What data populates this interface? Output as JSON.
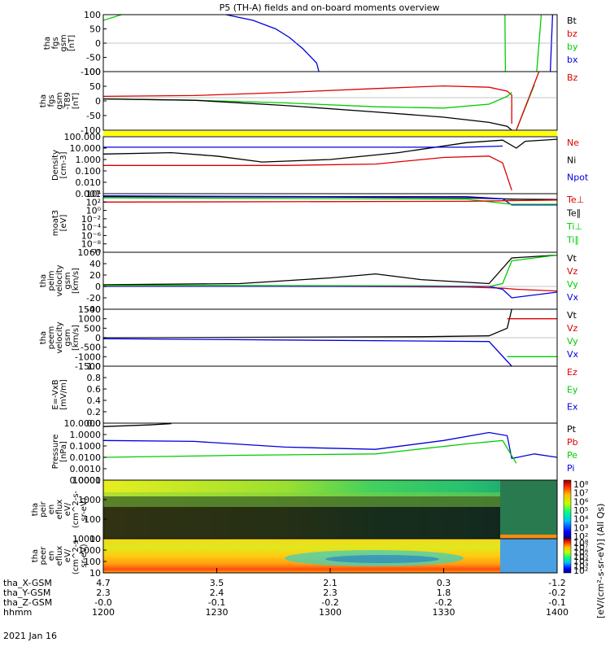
{
  "title": "P5 (TH-A) fields and on-board moments overview",
  "date_label": "2021 Jan 16",
  "colors": {
    "black": "#000000",
    "red": "#dd0000",
    "green": "#00cc00",
    "blue": "#0000dd",
    "yellow": "#ffff00"
  },
  "chart_data": [
    {
      "type": "line",
      "id": "fgs",
      "ylabel": [
        "tha",
        "fgs",
        "gsm",
        "[nT]"
      ],
      "ylim": [
        -100,
        100
      ],
      "yticks": [
        "100",
        "50",
        "0",
        "-50",
        "-100"
      ],
      "legend": [
        {
          "label": "Bt",
          "color": "black"
        },
        {
          "label": "bz",
          "color": "red"
        },
        {
          "label": "by",
          "color": "green"
        },
        {
          "label": "bx",
          "color": "blue"
        }
      ],
      "series": [
        {
          "color": "green",
          "points": [
            [
              0,
              80
            ],
            [
              0.04,
              100
            ]
          ]
        },
        {
          "color": "blue",
          "points": [
            [
              0.27,
              100
            ],
            [
              0.33,
              80
            ],
            [
              0.38,
              50
            ],
            [
              0.41,
              20
            ],
            [
              0.44,
              -20
            ],
            [
              0.47,
              -70
            ],
            [
              0.475,
              -100
            ]
          ]
        },
        {
          "color": "green",
          "points": [
            [
              0.885,
              100
            ],
            [
              0.886,
              -100
            ]
          ]
        },
        {
          "color": "green",
          "points": [
            [
              0.955,
              -100
            ],
            [
              0.965,
              100
            ]
          ]
        },
        {
          "color": "blue",
          "points": [
            [
              0.985,
              -100
            ],
            [
              0.99,
              100
            ]
          ]
        }
      ]
    },
    {
      "type": "line",
      "id": "fgs-t89",
      "ylabel": [
        "tha",
        "fgs",
        "gsm",
        "-T89",
        "[nT]"
      ],
      "ylim": [
        -125,
        100
      ],
      "yticks": [
        "100",
        "50",
        "0",
        "-50",
        "-100"
      ],
      "legend": [
        {
          "label": "Bz",
          "color": "red"
        }
      ],
      "series": [
        {
          "color": "red",
          "points": [
            [
              0,
              5
            ],
            [
              0.2,
              8
            ],
            [
              0.4,
              20
            ],
            [
              0.6,
              35
            ],
            [
              0.75,
              45
            ],
            [
              0.85,
              40
            ],
            [
              0.89,
              25
            ],
            [
              0.9,
              10
            ],
            [
              0.9,
              -100
            ]
          ]
        },
        {
          "color": "green",
          "points": [
            [
              0,
              -5
            ],
            [
              0.2,
              -10
            ],
            [
              0.4,
              -20
            ],
            [
              0.6,
              -35
            ],
            [
              0.75,
              -40
            ],
            [
              0.85,
              -25
            ],
            [
              0.89,
              5
            ],
            [
              0.9,
              20
            ]
          ]
        },
        {
          "color": "black",
          "points": [
            [
              0,
              -5
            ],
            [
              0.2,
              -10
            ],
            [
              0.4,
              -30
            ],
            [
              0.6,
              -55
            ],
            [
              0.75,
              -75
            ],
            [
              0.85,
              -95
            ],
            [
              0.89,
              -110
            ],
            [
              0.9,
              -125
            ]
          ]
        },
        {
          "color": "green",
          "points": [
            [
              0.91,
              -125
            ],
            [
              0.95,
              50
            ]
          ]
        },
        {
          "color": "red",
          "points": [
            [
              0.91,
              -125
            ],
            [
              0.96,
              100
            ]
          ]
        }
      ]
    },
    {
      "type": "line",
      "id": "density",
      "ylabel": [
        "Density",
        "[cm-3]"
      ],
      "ylim": [
        0.001,
        100
      ],
      "log": true,
      "yticks": [
        "100.000",
        "10.000",
        "1.000",
        "0.100",
        "0.010",
        "0.001"
      ],
      "legend": [
        {
          "label": "Ne",
          "color": "red"
        },
        {
          "label": "Ni",
          "color": "black"
        },
        {
          "label": "Npot",
          "color": "blue"
        }
      ],
      "series": [
        {
          "color": "black",
          "points": [
            [
              0,
              3
            ],
            [
              0.15,
              4
            ],
            [
              0.25,
              2
            ],
            [
              0.35,
              0.6
            ],
            [
              0.5,
              1
            ],
            [
              0.65,
              4
            ],
            [
              0.8,
              30
            ],
            [
              0.88,
              50
            ],
            [
              0.91,
              10
            ],
            [
              0.93,
              40
            ],
            [
              1,
              60
            ]
          ]
        },
        {
          "color": "blue",
          "points": [
            [
              0,
              12
            ],
            [
              0.8,
              12
            ],
            [
              0.88,
              15
            ]
          ]
        },
        {
          "color": "red",
          "points": [
            [
              0,
              0.3
            ],
            [
              0.4,
              0.3
            ],
            [
              0.6,
              0.4
            ],
            [
              0.75,
              1.5
            ],
            [
              0.85,
              2
            ],
            [
              0.88,
              0.5
            ],
            [
              0.9,
              0.002
            ]
          ]
        }
      ]
    },
    {
      "type": "line",
      "id": "moat3",
      "ylabel": [
        "moat3",
        "[eV]"
      ],
      "ylim": [
        1e-10,
        10000
      ],
      "log": true,
      "yticks": [
        "10⁴",
        "10²",
        "10⁰",
        "10⁻²",
        "10⁻⁴",
        "10⁻⁶",
        "10⁻⁸",
        "10⁻¹⁰"
      ],
      "legend": [
        {
          "label": "Te⊥",
          "color": "red"
        },
        {
          "label": "Te∥",
          "color": "black"
        },
        {
          "label": "Ti⊥",
          "color": "green"
        },
        {
          "label": "Ti∥",
          "color": "green"
        }
      ],
      "series": [
        {
          "color": "black",
          "points": [
            [
              0,
              2000
            ],
            [
              0.5,
              1500
            ],
            [
              0.8,
              1000
            ],
            [
              0.9,
              500
            ],
            [
              1,
              400
            ]
          ]
        },
        {
          "color": "blue",
          "points": [
            [
              0,
              3000
            ],
            [
              0.5,
              2000
            ],
            [
              0.8,
              2000
            ],
            [
              0.88,
              600
            ],
            [
              0.9,
              20
            ],
            [
              1,
              20
            ]
          ]
        },
        {
          "color": "green",
          "points": [
            [
              0,
              1000
            ],
            [
              0.8,
              500
            ],
            [
              0.9,
              30
            ],
            [
              1,
              30
            ]
          ]
        },
        {
          "color": "red",
          "points": [
            [
              0,
              100
            ],
            [
              0.8,
              150
            ],
            [
              0.88,
              200
            ],
            [
              1,
              300
            ]
          ]
        }
      ]
    },
    {
      "type": "line",
      "id": "peim",
      "ylabel": [
        "tha",
        "peim",
        "velocity",
        "gsm",
        "[km/s]"
      ],
      "ylim": [
        -40,
        60
      ],
      "yticks": [
        "60",
        "40",
        "20",
        "0",
        "-20",
        "-40"
      ],
      "legend": [
        {
          "label": "Vt",
          "color": "black"
        },
        {
          "label": "Vz",
          "color": "red"
        },
        {
          "label": "Vy",
          "color": "green"
        },
        {
          "label": "Vx",
          "color": "blue"
        }
      ],
      "series": [
        {
          "color": "black",
          "points": [
            [
              0,
              3
            ],
            [
              0.3,
              5
            ],
            [
              0.5,
              15
            ],
            [
              0.6,
              22
            ],
            [
              0.7,
              12
            ],
            [
              0.85,
              5
            ],
            [
              0.9,
              50
            ],
            [
              1,
              55
            ]
          ]
        },
        {
          "color": "red",
          "points": [
            [
              0,
              1
            ],
            [
              0.5,
              0
            ],
            [
              0.8,
              -1
            ],
            [
              0.88,
              -3
            ],
            [
              0.91,
              -5
            ],
            [
              1,
              -8
            ]
          ]
        },
        {
          "color": "green",
          "points": [
            [
              0,
              2
            ],
            [
              0.7,
              1
            ],
            [
              0.85,
              0
            ],
            [
              0.88,
              5
            ],
            [
              0.9,
              45
            ],
            [
              1,
              55
            ]
          ]
        },
        {
          "color": "blue",
          "points": [
            [
              0,
              0
            ],
            [
              0.85,
              0
            ],
            [
              0.88,
              -5
            ],
            [
              0.9,
              -20
            ],
            [
              1,
              -10
            ]
          ]
        }
      ]
    },
    {
      "type": "line",
      "id": "peem",
      "ylabel": [
        "tha",
        "peem",
        "velocity",
        "gsm",
        "[km/s]"
      ],
      "ylim": [
        -1500,
        1500
      ],
      "yticks": [
        "1500",
        "1000",
        "500",
        "0",
        "-500",
        "-1000",
        "-1500"
      ],
      "legend": [
        {
          "label": "Vt",
          "color": "black"
        },
        {
          "label": "Vz",
          "color": "red"
        },
        {
          "label": "Vy",
          "color": "green"
        },
        {
          "label": "Vx",
          "color": "blue"
        }
      ],
      "series": [
        {
          "color": "black",
          "points": [
            [
              0,
              0
            ],
            [
              0.7,
              50
            ],
            [
              0.85,
              100
            ],
            [
              0.89,
              500
            ],
            [
              0.9,
              1500
            ]
          ]
        },
        {
          "color": "blue",
          "points": [
            [
              0,
              -50
            ],
            [
              0.85,
              -200
            ],
            [
              0.9,
              -1500
            ]
          ]
        },
        {
          "color": "red",
          "points": [
            [
              0.89,
              1000
            ],
            [
              1,
              1000
            ]
          ]
        },
        {
          "color": "green",
          "points": [
            [
              0.89,
              -1000
            ],
            [
              1,
              -1000
            ]
          ]
        }
      ]
    },
    {
      "type": "line",
      "id": "efield",
      "ylabel": [
        "E=-VxB",
        "[mV/m]"
      ],
      "ylim": [
        0,
        1
      ],
      "yticks": [
        "1.0",
        "0.8",
        "0.6",
        "0.4",
        "0.2",
        "0.0"
      ],
      "legend": [
        {
          "label": "Ez",
          "color": "red"
        },
        {
          "label": "Ey",
          "color": "green"
        },
        {
          "label": "Ex",
          "color": "blue"
        }
      ],
      "series": []
    },
    {
      "type": "line",
      "id": "pressure",
      "ylabel": [
        "Pressure",
        "[nPa]"
      ],
      "ylim": [
        0.0001,
        10
      ],
      "log": true,
      "yticks": [
        "10.0000",
        "1.0000",
        "0.1000",
        "0.0100",
        "0.0010",
        "0.0001"
      ],
      "legend": [
        {
          "label": "Pt",
          "color": "black"
        },
        {
          "label": "Pb",
          "color": "red"
        },
        {
          "label": "Pe",
          "color": "green"
        },
        {
          "label": "Pi",
          "color": "blue"
        }
      ],
      "series": [
        {
          "color": "black",
          "points": [
            [
              0,
              5
            ],
            [
              0.1,
              7
            ],
            [
              0.15,
              9
            ]
          ]
        },
        {
          "color": "blue",
          "points": [
            [
              0,
              0.3
            ],
            [
              0.2,
              0.25
            ],
            [
              0.4,
              0.08
            ],
            [
              0.6,
              0.05
            ],
            [
              0.75,
              0.3
            ],
            [
              0.85,
              1.5
            ],
            [
              0.89,
              0.8
            ],
            [
              0.9,
              0.008
            ],
            [
              0.95,
              0.02
            ],
            [
              1,
              0.01
            ]
          ]
        },
        {
          "color": "green",
          "points": [
            [
              0,
              0.01
            ],
            [
              0.3,
              0.015
            ],
            [
              0.6,
              0.02
            ],
            [
              0.8,
              0.15
            ],
            [
              0.88,
              0.3
            ],
            [
              0.91,
              0.003
            ]
          ]
        }
      ]
    },
    {
      "type": "heatmap",
      "id": "peir",
      "ylabel": [
        "tha",
        "peir",
        "en",
        "eflux",
        "eV/",
        "(cm^2-s-",
        "sr-eV)"
      ],
      "ylim": [
        10,
        10000
      ],
      "log": true,
      "yticks": [
        "10000",
        "1000",
        "100",
        "10"
      ],
      "colorbar": {
        "min_exp": 2,
        "max_exp": 8,
        "ticks": [
          "10⁸",
          "10⁷",
          "10⁶",
          "10⁵",
          "10⁴",
          "10³",
          "10²"
        ]
      }
    },
    {
      "type": "heatmap",
      "id": "peer",
      "ylabel": [
        "tha",
        "peer",
        "en",
        "eflux",
        "eV/",
        "(cm^2-s-",
        "sr-eV)"
      ],
      "ylim": [
        10,
        10000
      ],
      "log": true,
      "yticks": [
        "10000",
        "1000",
        "100",
        "10"
      ],
      "colorbar": {
        "min_exp": 2,
        "max_exp": 8,
        "ticks": [
          "10⁸",
          "10⁷",
          "10⁶",
          "10⁵",
          "10⁴",
          "10³",
          "10²"
        ]
      }
    }
  ],
  "colorbar_label": "[eV/(cm²-s-sr-eV)] (All Qs)",
  "ephemeris": {
    "row_labels": [
      "tha_X-GSM",
      "tha_Y-GSM",
      "tha_Z-GSM",
      "hhmm"
    ],
    "columns": [
      {
        "values": [
          "4.7",
          "2.3",
          "-0.0",
          "1200"
        ]
      },
      {
        "values": [
          "3.5",
          "2.4",
          "-0.1",
          "1230"
        ]
      },
      {
        "values": [
          "2.1",
          "2.3",
          "-0.2",
          "1300"
        ]
      },
      {
        "values": [
          "0.3",
          "1.8",
          "-0.2",
          "1330"
        ]
      },
      {
        "values": [
          "-1.2",
          "-0.2",
          "-0.1",
          "1400"
        ]
      }
    ]
  }
}
